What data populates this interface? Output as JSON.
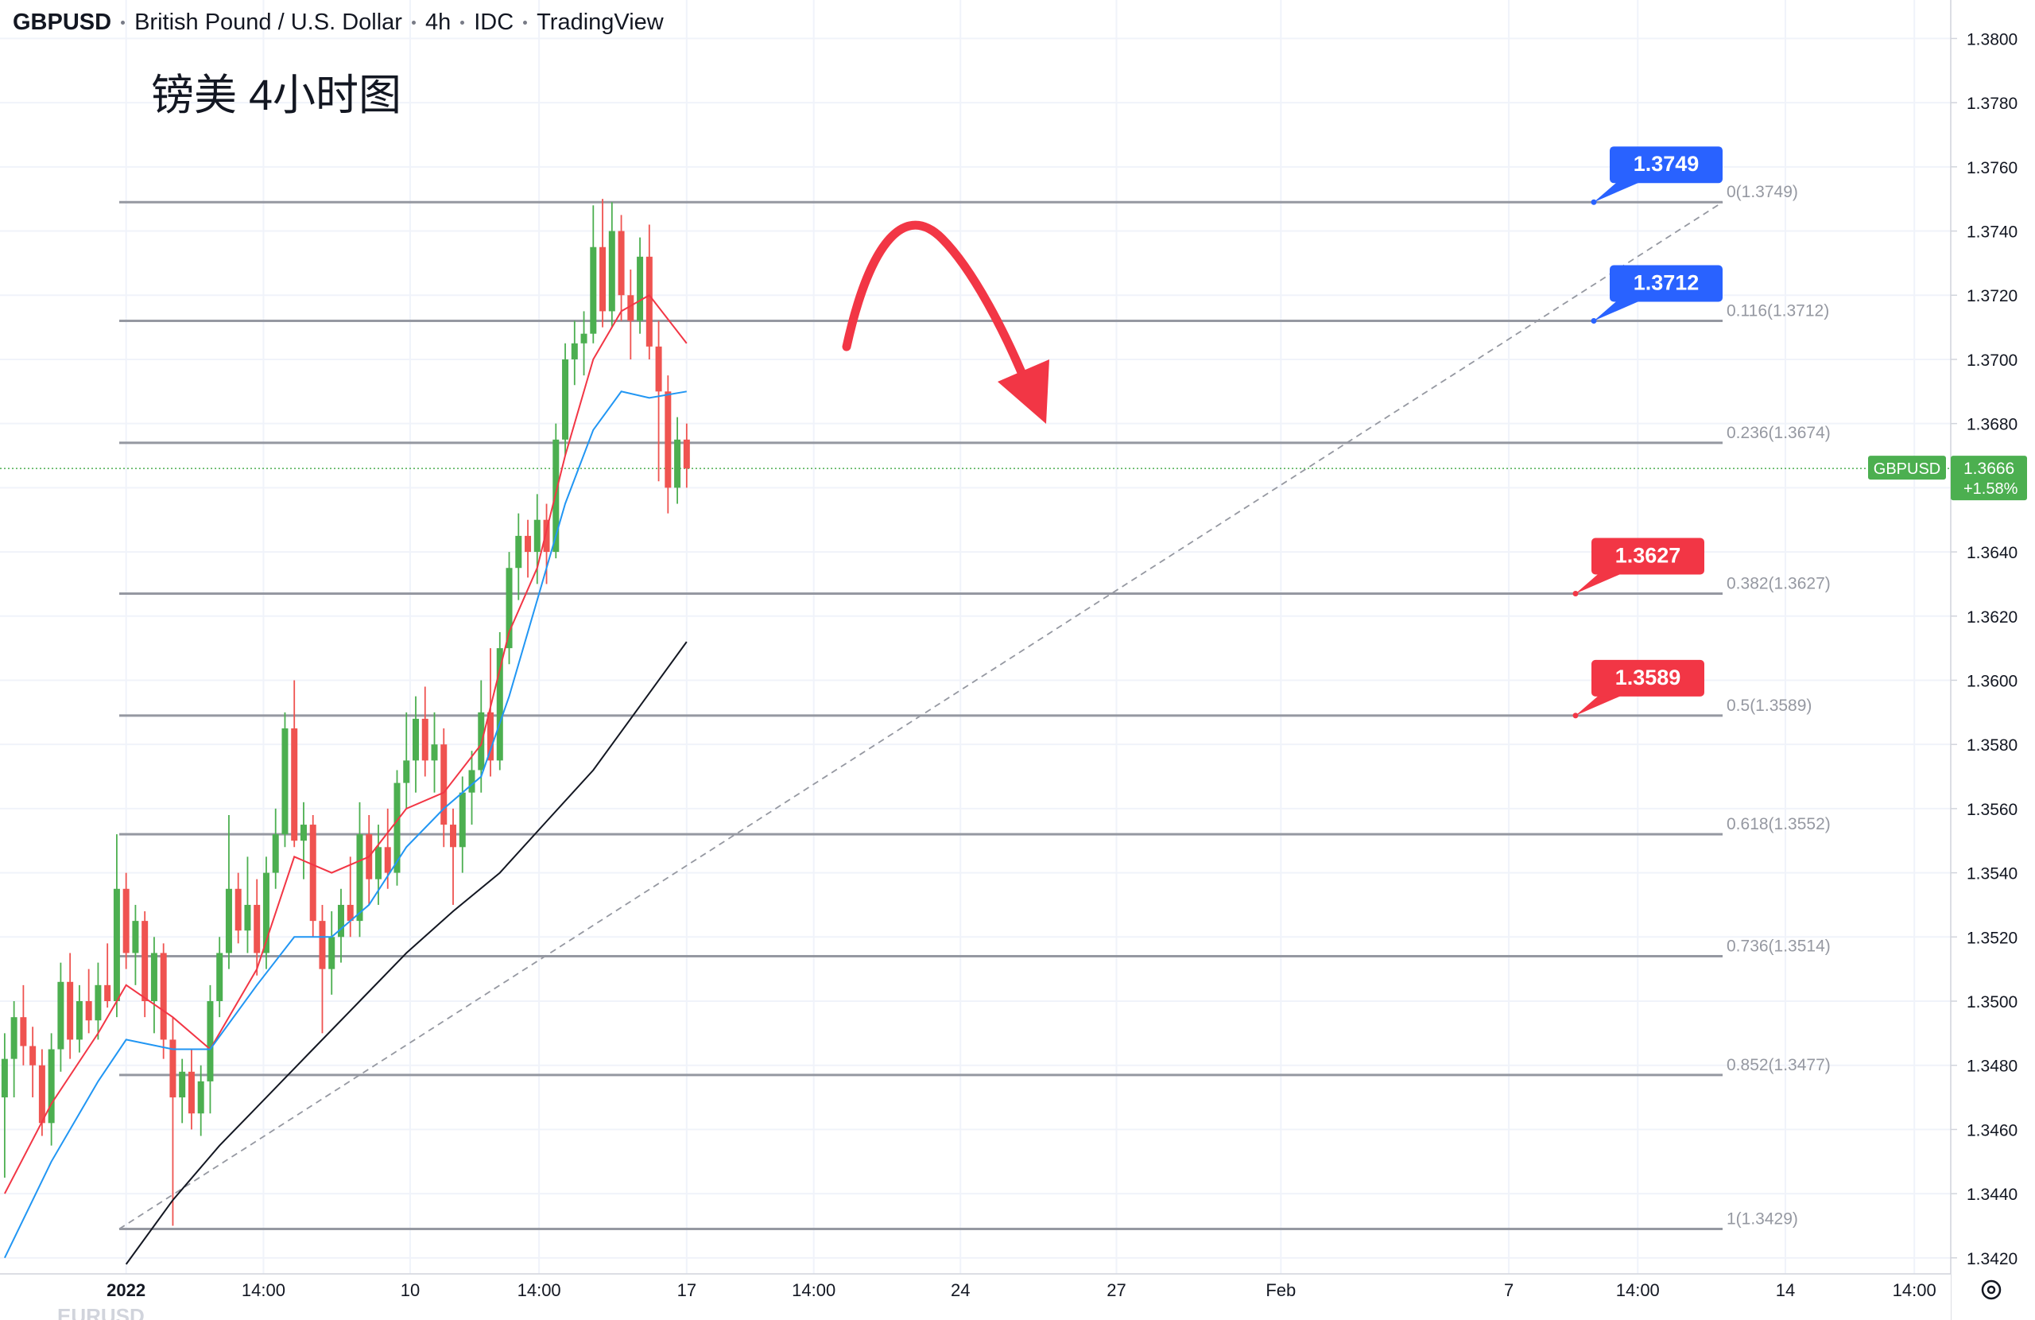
{
  "header": {
    "symbol": "GBPUSD",
    "name": "British Pound / U.S. Dollar",
    "interval": "4h",
    "source": "IDC",
    "platform": "TradingView"
  },
  "chart_data": {
    "type": "candlestick",
    "title": "镑美 4小时图",
    "watermark": "EURUSD",
    "up_color": "#4caf50",
    "down_color": "#ef5350",
    "grid": true,
    "xlim": [
      -13.5,
      195.3
    ],
    "ylim": [
      1.3415,
      1.3812
    ],
    "yticks": [
      {
        "value": 1.342,
        "label": "1.3420"
      },
      {
        "value": 1.344,
        "label": "1.3440"
      },
      {
        "value": 1.346,
        "label": "1.3460"
      },
      {
        "value": 1.348,
        "label": "1.3480"
      },
      {
        "value": 1.35,
        "label": "1.3500"
      },
      {
        "value": 1.352,
        "label": "1.3520"
      },
      {
        "value": 1.354,
        "label": "1.3540"
      },
      {
        "value": 1.356,
        "label": "1.3560"
      },
      {
        "value": 1.358,
        "label": "1.3580"
      },
      {
        "value": 1.36,
        "label": "1.3600"
      },
      {
        "value": 1.362,
        "label": "1.3620"
      },
      {
        "value": 1.364,
        "label": "1.3640"
      },
      {
        "value": 1.366,
        "label": "1.3660"
      },
      {
        "value": 1.368,
        "label": "1.3680"
      },
      {
        "value": 1.37,
        "label": "1.3700"
      },
      {
        "value": 1.372,
        "label": "1.3720"
      },
      {
        "value": 1.374,
        "label": "1.3740"
      },
      {
        "value": 1.376,
        "label": "1.3760"
      },
      {
        "value": 1.378,
        "label": "1.3780"
      },
      {
        "value": 1.38,
        "label": "1.3800"
      }
    ],
    "xticks": [
      {
        "value": 0,
        "label": "2022"
      },
      {
        "value": 14.7,
        "label": "14:00"
      },
      {
        "value": 30.4,
        "label": "10"
      },
      {
        "value": 44.2,
        "label": "14:00"
      },
      {
        "value": 60,
        "label": "17"
      },
      {
        "value": 73.6,
        "label": "14:00"
      },
      {
        "value": 89.3,
        "label": "24"
      },
      {
        "value": 106,
        "label": "27"
      },
      {
        "value": 123.6,
        "label": "Feb"
      },
      {
        "value": 148,
        "label": "7"
      },
      {
        "value": 161.8,
        "label": "14:00"
      },
      {
        "value": 177.6,
        "label": "14"
      },
      {
        "value": 191.4,
        "label": "14:00"
      }
    ],
    "x": [
      -13,
      -12,
      -11,
      -10,
      -9,
      -8,
      -7,
      -6,
      -5,
      -4,
      -3,
      -2,
      -1,
      0,
      1,
      2,
      3,
      4,
      5,
      6,
      7,
      8,
      9,
      10,
      11,
      12,
      13,
      14,
      15,
      16,
      17,
      18,
      19,
      20,
      21,
      22,
      23,
      24,
      25,
      26,
      27,
      28,
      29,
      30,
      31,
      32,
      33,
      34,
      35,
      36,
      37,
      38,
      39,
      40,
      41,
      42,
      43,
      44,
      45,
      46,
      47,
      48,
      49,
      50,
      51,
      52,
      53,
      54,
      55,
      56,
      57,
      58,
      59,
      60
    ],
    "open": [
      1.347,
      1.3482,
      1.3495,
      1.3486,
      1.348,
      1.3462,
      1.3485,
      1.3506,
      1.3488,
      1.35,
      1.3494,
      1.3505,
      1.35,
      1.3535,
      1.3515,
      1.3525,
      1.35,
      1.3515,
      1.3488,
      1.347,
      1.3478,
      1.3465,
      1.3475,
      1.35,
      1.3515,
      1.3535,
      1.3522,
      1.353,
      1.3515,
      1.354,
      1.3552,
      1.3585,
      1.355,
      1.3555,
      1.3525,
      1.351,
      1.352,
      1.353,
      1.3525,
      1.3552,
      1.3538,
      1.3548,
      1.354,
      1.3568,
      1.3575,
      1.3588,
      1.3575,
      1.358,
      1.3555,
      1.3548,
      1.3565,
      1.3572,
      1.359,
      1.3575,
      1.361,
      1.3635,
      1.3645,
      1.364,
      1.365,
      1.364,
      1.3675,
      1.37,
      1.3705,
      1.3708,
      1.3735,
      1.3715,
      1.374,
      1.372,
      1.3712,
      1.3732,
      1.3704,
      1.369,
      1.366,
      1.3675
    ],
    "high": [
      1.349,
      1.35,
      1.3505,
      1.3492,
      1.3485,
      1.349,
      1.3512,
      1.3515,
      1.3505,
      1.351,
      1.3512,
      1.3518,
      1.3552,
      1.354,
      1.353,
      1.3528,
      1.352,
      1.3518,
      1.3495,
      1.3482,
      1.3485,
      1.348,
      1.3505,
      1.352,
      1.3558,
      1.354,
      1.3545,
      1.3538,
      1.3545,
      1.356,
      1.359,
      1.36,
      1.3562,
      1.3558,
      1.353,
      1.3528,
      1.3535,
      1.3545,
      1.3562,
      1.3558,
      1.3555,
      1.356,
      1.3572,
      1.359,
      1.3595,
      1.3598,
      1.359,
      1.3585,
      1.356,
      1.357,
      1.3578,
      1.36,
      1.361,
      1.3615,
      1.364,
      1.3652,
      1.365,
      1.3658,
      1.3655,
      1.368,
      1.3705,
      1.3712,
      1.3715,
      1.3748,
      1.375,
      1.3749,
      1.3745,
      1.3728,
      1.3738,
      1.3742,
      1.3712,
      1.3695,
      1.3682,
      1.368
    ],
    "low": [
      1.3445,
      1.347,
      1.348,
      1.347,
      1.3458,
      1.3455,
      1.3478,
      1.3482,
      1.3484,
      1.349,
      1.3488,
      1.3498,
      1.3495,
      1.351,
      1.3505,
      1.3495,
      1.349,
      1.3482,
      1.343,
      1.3462,
      1.346,
      1.3458,
      1.3465,
      1.3495,
      1.351,
      1.3518,
      1.3515,
      1.3508,
      1.351,
      1.3535,
      1.3548,
      1.3548,
      1.3538,
      1.352,
      1.349,
      1.3502,
      1.3512,
      1.352,
      1.352,
      1.353,
      1.353,
      1.3535,
      1.3536,
      1.356,
      1.3565,
      1.357,
      1.3565,
      1.3548,
      1.353,
      1.354,
      1.3555,
      1.3565,
      1.357,
      1.3572,
      1.3605,
      1.3625,
      1.3632,
      1.363,
      1.363,
      1.3638,
      1.367,
      1.3692,
      1.3695,
      1.3705,
      1.371,
      1.371,
      1.3712,
      1.37,
      1.3708,
      1.37,
      1.3662,
      1.3652,
      1.3655,
      1.366
    ],
    "close": [
      1.3482,
      1.3495,
      1.3486,
      1.348,
      1.3462,
      1.3485,
      1.3506,
      1.3488,
      1.35,
      1.3494,
      1.3505,
      1.35,
      1.3535,
      1.3515,
      1.3525,
      1.35,
      1.3515,
      1.3488,
      1.347,
      1.3478,
      1.3465,
      1.3475,
      1.35,
      1.3515,
      1.3535,
      1.3522,
      1.353,
      1.3515,
      1.354,
      1.3552,
      1.3585,
      1.355,
      1.3555,
      1.3525,
      1.351,
      1.352,
      1.353,
      1.3525,
      1.3552,
      1.3538,
      1.3548,
      1.354,
      1.3568,
      1.3575,
      1.3588,
      1.3575,
      1.358,
      1.3555,
      1.3548,
      1.3565,
      1.3572,
      1.359,
      1.3575,
      1.361,
      1.3635,
      1.3645,
      1.364,
      1.365,
      1.364,
      1.3675,
      1.37,
      1.3705,
      1.3708,
      1.3735,
      1.3715,
      1.374,
      1.372,
      1.3712,
      1.3732,
      1.3704,
      1.369,
      1.366,
      1.3675,
      1.3666
    ],
    "moving_averages": [
      {
        "color": "#f23645",
        "x": [
          -13,
          -8,
          -3,
          0,
          5,
          9,
          14,
          18,
          22,
          26,
          30,
          34,
          38,
          41,
          44,
          47,
          50,
          53,
          56,
          60
        ],
        "values": [
          1.344,
          1.3468,
          1.349,
          1.3505,
          1.3495,
          1.3485,
          1.351,
          1.3545,
          1.354,
          1.3545,
          1.356,
          1.3565,
          1.358,
          1.3615,
          1.3635,
          1.367,
          1.37,
          1.3715,
          1.372,
          1.3705
        ]
      },
      {
        "color": "#2196f3",
        "x": [
          -13,
          -8,
          -3,
          0,
          5,
          9,
          14,
          18,
          22,
          26,
          30,
          34,
          38,
          41,
          44,
          47,
          50,
          53,
          56,
          60
        ],
        "values": [
          1.342,
          1.345,
          1.3475,
          1.3488,
          1.3485,
          1.3485,
          1.3505,
          1.352,
          1.352,
          1.353,
          1.3548,
          1.356,
          1.357,
          1.3595,
          1.3625,
          1.3655,
          1.3678,
          1.369,
          1.3688,
          1.369
        ]
      },
      {
        "color": "#131722",
        "x": [
          0,
          5,
          10,
          15,
          20,
          25,
          30,
          35,
          40,
          45,
          50,
          55,
          60
        ],
        "values": [
          1.3418,
          1.3438,
          1.3455,
          1.347,
          1.3485,
          1.35,
          1.3515,
          1.3528,
          1.354,
          1.3556,
          1.3572,
          1.3592,
          1.3612
        ]
      }
    ],
    "fib_levels": [
      {
        "value": 1.3749,
        "label": "0(1.3749)"
      },
      {
        "value": 1.3712,
        "label": "0.116(1.3712)"
      },
      {
        "value": 1.3674,
        "label": "0.236(1.3674)"
      },
      {
        "value": 1.3627,
        "label": "0.382(1.3627)"
      },
      {
        "value": 1.3589,
        "label": "0.5(1.3589)"
      },
      {
        "value": 1.3552,
        "label": "0.618(1.3552)"
      },
      {
        "value": 1.3514,
        "label": "0.736(1.3514)"
      },
      {
        "value": 1.3477,
        "label": "0.852(1.3477)"
      },
      {
        "value": 1.3429,
        "label": "1(1.3429)"
      }
    ],
    "callouts": [
      {
        "value": 1.3749,
        "color": "#2962ff"
      },
      {
        "value": 1.3712,
        "color": "#2962ff"
      },
      {
        "value": 1.3627,
        "color": "#f23645"
      },
      {
        "value": 1.3589,
        "color": "#f23645"
      }
    ],
    "last_price": {
      "symbol": "GBPUSD",
      "value": 1.3666,
      "change": {
        "value": 1.58,
        "label": "+1.58%"
      },
      "color": "#4caf50"
    }
  }
}
